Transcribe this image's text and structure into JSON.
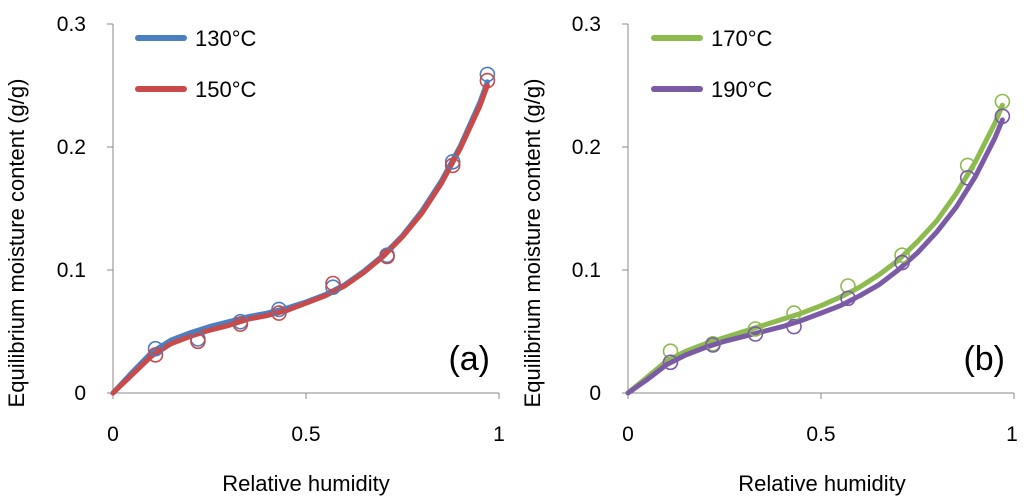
{
  "chart_data": [
    {
      "type": "scatter",
      "panel_label": "(a)",
      "xlabel": "Relative humidity",
      "ylabel": "Equilibrium moisture content (g/g)",
      "xlim": [
        0,
        1
      ],
      "ylim": [
        0,
        0.3
      ],
      "x_ticks": [
        "0",
        "0.5",
        "1"
      ],
      "y_ticks": [
        "0",
        "0.1",
        "0.2",
        "0.3"
      ],
      "legend_position": "top-left",
      "series": [
        {
          "name": "130°C",
          "color": "#4a7fc1",
          "x": [
            0.11,
            0.22,
            0.33,
            0.43,
            0.57,
            0.71,
            0.88,
            0.97
          ],
          "y": [
            0.036,
            0.044,
            0.058,
            0.068,
            0.086,
            0.112,
            0.188,
            0.259
          ],
          "fit_x": [
            0,
            0.05,
            0.1,
            0.15,
            0.2,
            0.25,
            0.3,
            0.35,
            0.4,
            0.45,
            0.5,
            0.55,
            0.6,
            0.65,
            0.7,
            0.75,
            0.8,
            0.85,
            0.9,
            0.95,
            0.97
          ],
          "fit_y": [
            0,
            0.017,
            0.033,
            0.043,
            0.049,
            0.054,
            0.058,
            0.062,
            0.065,
            0.069,
            0.074,
            0.08,
            0.088,
            0.099,
            0.112,
            0.128,
            0.148,
            0.172,
            0.201,
            0.236,
            0.253
          ]
        },
        {
          "name": "150°C",
          "color": "#c94a48",
          "x": [
            0.11,
            0.22,
            0.33,
            0.43,
            0.57,
            0.71,
            0.88,
            0.97
          ],
          "y": [
            0.031,
            0.042,
            0.056,
            0.065,
            0.089,
            0.111,
            0.185,
            0.254
          ],
          "fit_x": [
            0,
            0.05,
            0.1,
            0.15,
            0.2,
            0.25,
            0.3,
            0.35,
            0.4,
            0.45,
            0.5,
            0.55,
            0.6,
            0.65,
            0.7,
            0.75,
            0.8,
            0.85,
            0.9,
            0.95,
            0.97
          ],
          "fit_y": [
            0,
            0.015,
            0.03,
            0.04,
            0.046,
            0.051,
            0.055,
            0.06,
            0.063,
            0.067,
            0.073,
            0.079,
            0.087,
            0.098,
            0.111,
            0.127,
            0.146,
            0.17,
            0.199,
            0.233,
            0.25
          ]
        }
      ]
    },
    {
      "type": "scatter",
      "panel_label": "(b)",
      "xlabel": "Relative humidity",
      "ylabel": "Equilibrium moisture content (g/g)",
      "xlim": [
        0,
        1
      ],
      "ylim": [
        0,
        0.3
      ],
      "x_ticks": [
        "0",
        "0.5",
        "1"
      ],
      "y_ticks": [
        "0",
        "0.1",
        "0.2",
        "0.3"
      ],
      "legend_position": "top-left",
      "series": [
        {
          "name": "170°C",
          "color": "#8dbb4f",
          "x": [
            0.11,
            0.22,
            0.33,
            0.43,
            0.57,
            0.71,
            0.88,
            0.97
          ],
          "y": [
            0.034,
            0.04,
            0.052,
            0.065,
            0.087,
            0.112,
            0.185,
            0.237
          ],
          "fit_x": [
            0,
            0.05,
            0.1,
            0.15,
            0.2,
            0.25,
            0.3,
            0.35,
            0.4,
            0.45,
            0.5,
            0.55,
            0.6,
            0.65,
            0.7,
            0.75,
            0.8,
            0.85,
            0.9,
            0.95,
            0.97
          ],
          "fit_y": [
            0,
            0.013,
            0.026,
            0.034,
            0.04,
            0.045,
            0.05,
            0.055,
            0.06,
            0.065,
            0.071,
            0.078,
            0.086,
            0.096,
            0.108,
            0.123,
            0.14,
            0.162,
            0.188,
            0.219,
            0.234
          ]
        },
        {
          "name": "190°C",
          "color": "#7b5aa6",
          "x": [
            0.11,
            0.22,
            0.33,
            0.43,
            0.57,
            0.71,
            0.88,
            0.97
          ],
          "y": [
            0.025,
            0.039,
            0.048,
            0.054,
            0.077,
            0.106,
            0.175,
            0.225
          ],
          "fit_x": [
            0,
            0.05,
            0.1,
            0.15,
            0.2,
            0.25,
            0.3,
            0.35,
            0.4,
            0.45,
            0.5,
            0.55,
            0.6,
            0.65,
            0.7,
            0.75,
            0.8,
            0.85,
            0.9,
            0.95,
            0.97
          ],
          "fit_y": [
            0,
            0.011,
            0.023,
            0.031,
            0.037,
            0.042,
            0.046,
            0.05,
            0.054,
            0.059,
            0.065,
            0.071,
            0.079,
            0.088,
            0.1,
            0.114,
            0.131,
            0.151,
            0.176,
            0.207,
            0.222
          ]
        }
      ]
    }
  ]
}
